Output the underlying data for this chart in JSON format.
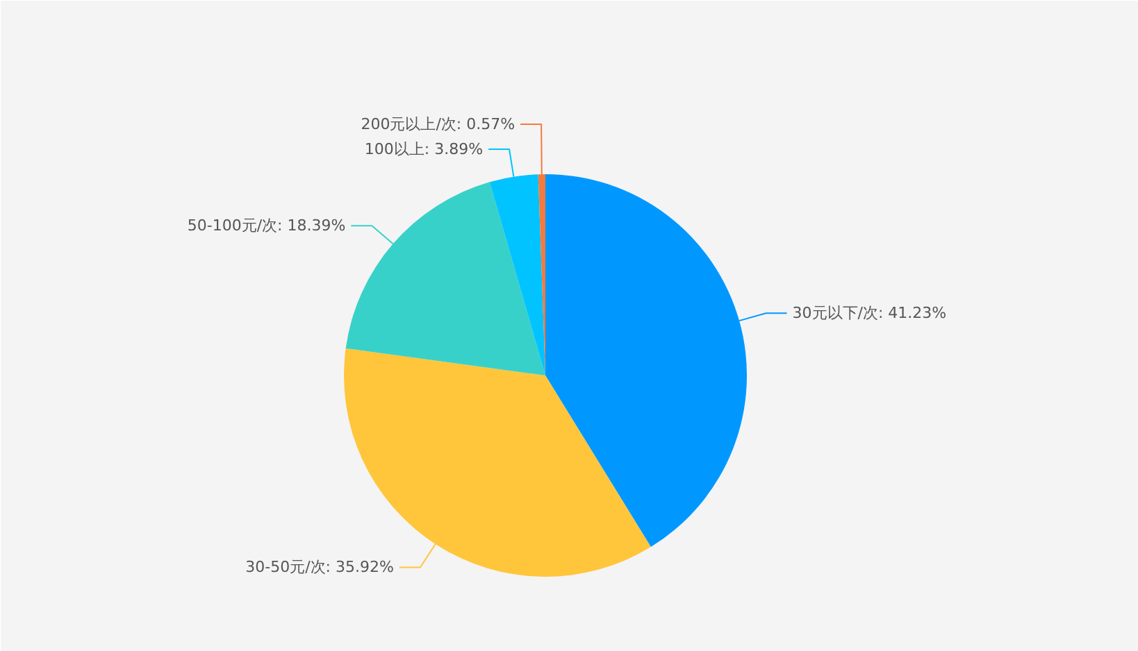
{
  "chart_data": {
    "type": "pie",
    "categories": [
      "30元以下/次",
      "30-50元/次",
      "50-100元/次",
      "100以上",
      "200元以上/次"
    ],
    "values": [
      41.23,
      35.92,
      18.39,
      3.89,
      0.57
    ],
    "value_labels": [
      "41.23%",
      "35.92%",
      "18.39%",
      "3.89%",
      "0.57%"
    ],
    "colors": [
      "#0098ff",
      "#ffc63c",
      "#38d1c9",
      "#00c3ff",
      "#f47a3e"
    ]
  }
}
